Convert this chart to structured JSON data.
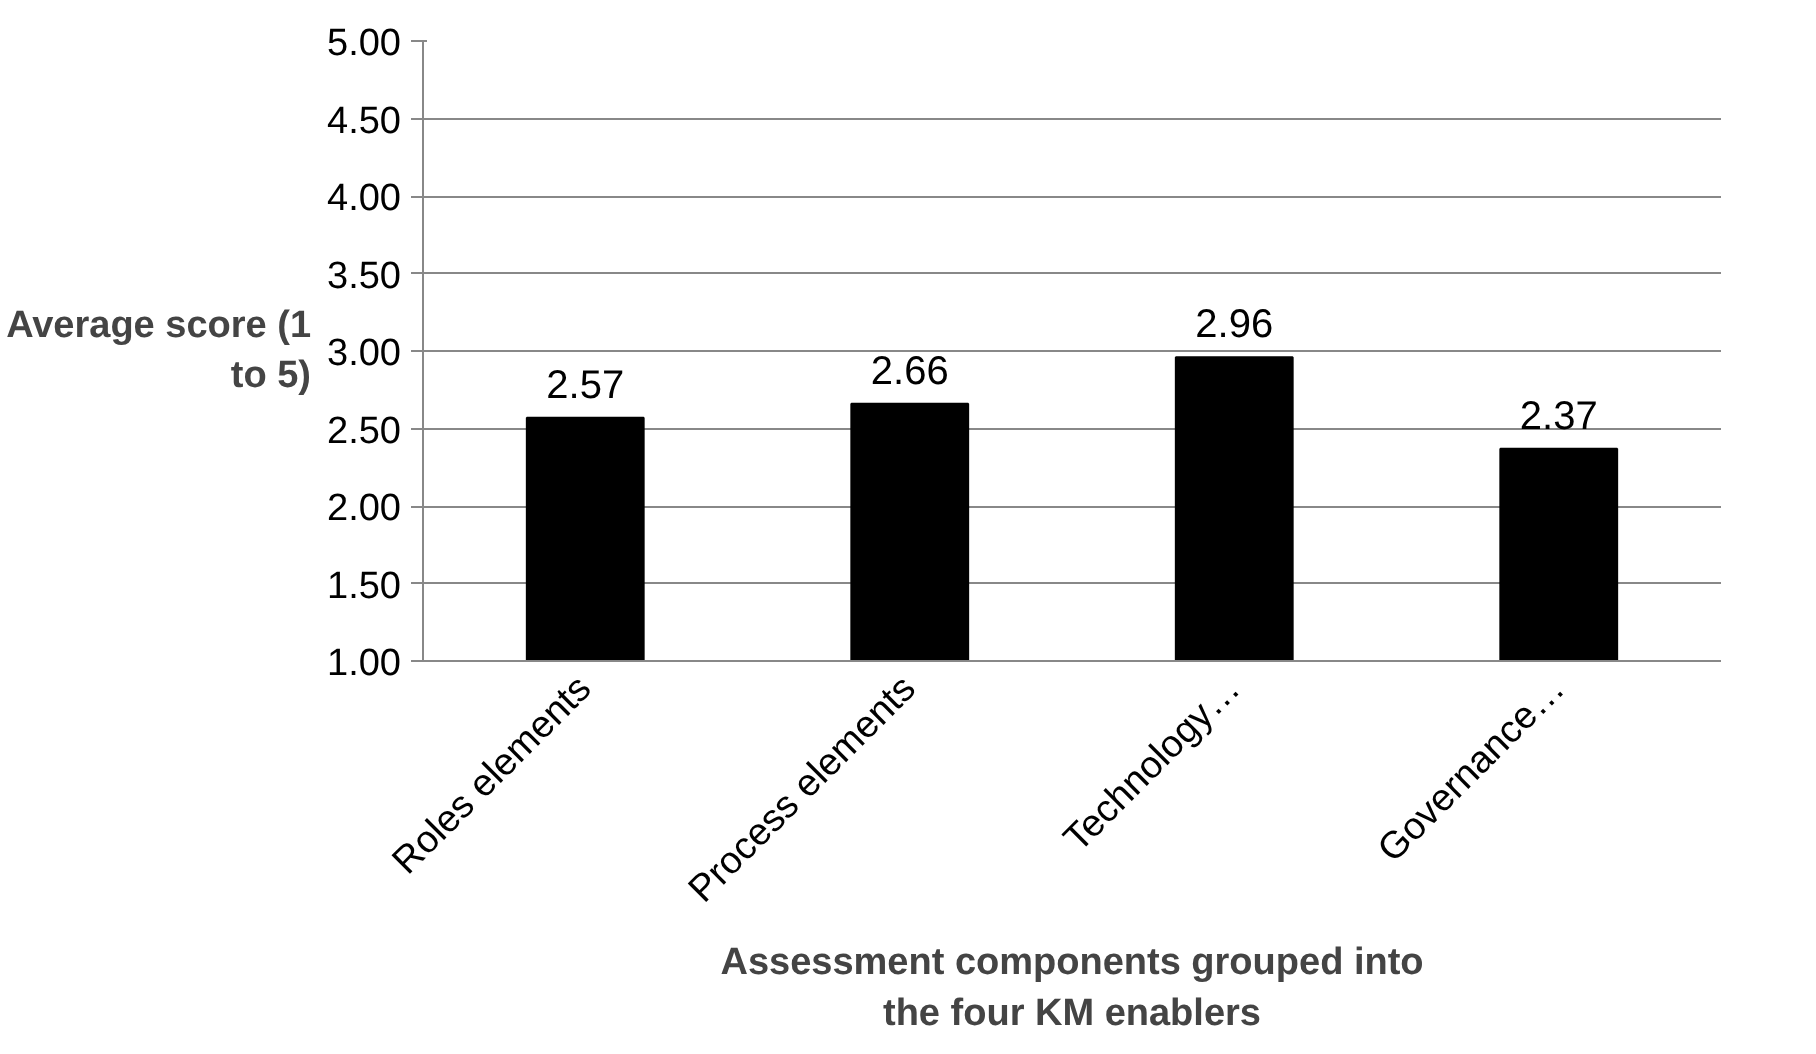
{
  "chart_data": {
    "type": "bar",
    "xlabel": "Assessment components grouped into the four KM enablers",
    "ylabel": "Average score (1 to 5)",
    "categories": [
      "Roles elements",
      "Process elements",
      "Technology…",
      "Governance…"
    ],
    "values": [
      2.57,
      2.66,
      2.96,
      2.37
    ],
    "color": "#000000",
    "ylim": [
      1,
      5
    ],
    "yticks": [
      {
        "value": 1,
        "label": "1.00"
      },
      {
        "value": 1.5,
        "label": "1.50"
      },
      {
        "value": 2,
        "label": "2.00"
      },
      {
        "value": 2.5,
        "label": "2.50"
      },
      {
        "value": 3,
        "label": "3.00"
      },
      {
        "value": 3.5,
        "label": "3.50"
      },
      {
        "value": 4,
        "label": "4.00"
      },
      {
        "value": 4.5,
        "label": "4.50"
      },
      {
        "value": 5,
        "label": "5.00"
      }
    ],
    "grid": "y",
    "data_labels": true
  }
}
